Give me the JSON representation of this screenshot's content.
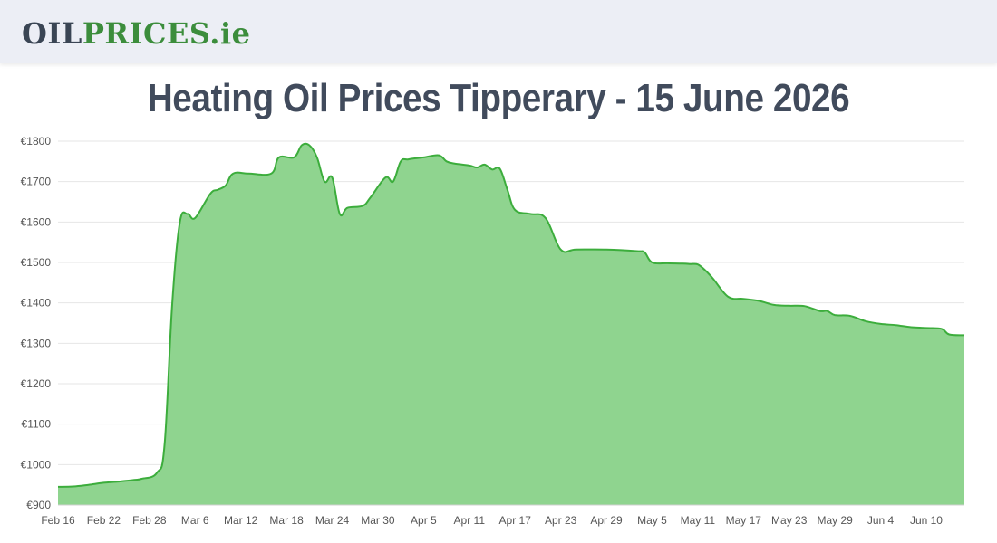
{
  "header": {
    "logo": {
      "part1": "OIL",
      "part2": "PRICES",
      "part3": ".ie"
    }
  },
  "page": {
    "title": "Heating Oil Prices Tipperary - 15 June 2026"
  },
  "colors": {
    "line": "#3cad3c",
    "fill": "#8fd48f",
    "grid": "#e6e6e6",
    "header_bg": "#eceef5"
  },
  "chart_data": {
    "type": "area",
    "title": "",
    "xlabel": "",
    "ylabel": "",
    "grid": true,
    "legend": "none",
    "ylim": [
      900,
      1800
    ],
    "yticks": [
      900,
      1000,
      1100,
      1200,
      1300,
      1400,
      1500,
      1600,
      1700,
      1800
    ],
    "ytick_labels": [
      "€900",
      "€1000",
      "€1100",
      "€1200",
      "€1300",
      "€1400",
      "€1500",
      "€1600",
      "€1700",
      "€1800"
    ],
    "x_start": "2026-02-16",
    "x_end": "2026-06-15",
    "xtick_labels": [
      "Feb 16",
      "Feb 22",
      "Feb 28",
      "Mar 6",
      "Mar 12",
      "Mar 18",
      "Mar 24",
      "Mar 30",
      "Apr 5",
      "Apr 11",
      "Apr 17",
      "Apr 23",
      "Apr 29",
      "May 5",
      "May 11",
      "May 17",
      "May 23",
      "May 29",
      "Jun 4",
      "Jun 10"
    ],
    "xtick_dates": [
      "2026-02-16",
      "2026-02-22",
      "2026-02-28",
      "2026-03-06",
      "2026-03-12",
      "2026-03-18",
      "2026-03-24",
      "2026-03-30",
      "2026-04-05",
      "2026-04-11",
      "2026-04-17",
      "2026-04-23",
      "2026-04-29",
      "2026-05-05",
      "2026-05-11",
      "2026-05-17",
      "2026-05-23",
      "2026-05-29",
      "2026-06-04",
      "2026-06-10"
    ],
    "series": [
      {
        "x": [
          "2026-02-16",
          "2026-02-18",
          "2026-02-20",
          "2026-02-22",
          "2026-02-24",
          "2026-02-26",
          "2026-02-27",
          "2026-03-01",
          "2026-03-02",
          "2026-03-03",
          "2026-03-04",
          "2026-03-05",
          "2026-03-06",
          "2026-03-08",
          "2026-03-09",
          "2026-03-10",
          "2026-03-11",
          "2026-03-13",
          "2026-03-16",
          "2026-03-17",
          "2026-03-19",
          "2026-03-20",
          "2026-03-21",
          "2026-03-22",
          "2026-03-23",
          "2026-03-24",
          "2026-03-25",
          "2026-03-26",
          "2026-03-28",
          "2026-03-29",
          "2026-03-31",
          "2026-04-01",
          "2026-04-02",
          "2026-04-03",
          "2026-04-05",
          "2026-04-07",
          "2026-04-08",
          "2026-04-09",
          "2026-04-11",
          "2026-04-12",
          "2026-04-13",
          "2026-04-14",
          "2026-04-15",
          "2026-04-16",
          "2026-04-17",
          "2026-04-19",
          "2026-04-21",
          "2026-04-23",
          "2026-04-25",
          "2026-04-29",
          "2026-05-03",
          "2026-05-04",
          "2026-05-05",
          "2026-05-07",
          "2026-05-09",
          "2026-05-10",
          "2026-05-11",
          "2026-05-12",
          "2026-05-13",
          "2026-05-15",
          "2026-05-17",
          "2026-05-19",
          "2026-05-21",
          "2026-05-23",
          "2026-05-25",
          "2026-05-27",
          "2026-05-28",
          "2026-05-29",
          "2026-05-31",
          "2026-06-02",
          "2026-06-04",
          "2026-06-06",
          "2026-06-08",
          "2026-06-10",
          "2026-06-12",
          "2026-06-13",
          "2026-06-15"
        ],
        "y": [
          945,
          946,
          950,
          955,
          958,
          962,
          965,
          980,
          1050,
          1400,
          1600,
          1620,
          1610,
          1670,
          1680,
          1690,
          1720,
          1720,
          1720,
          1760,
          1760,
          1790,
          1790,
          1760,
          1700,
          1710,
          1620,
          1635,
          1640,
          1660,
          1710,
          1700,
          1750,
          1755,
          1760,
          1765,
          1750,
          1745,
          1740,
          1735,
          1742,
          1730,
          1732,
          1680,
          1630,
          1620,
          1610,
          1532,
          1532,
          1532,
          1528,
          1525,
          1500,
          1498,
          1497,
          1496,
          1495,
          1480,
          1460,
          1415,
          1410,
          1405,
          1395,
          1393,
          1392,
          1380,
          1380,
          1370,
          1368,
          1355,
          1348,
          1345,
          1340,
          1338,
          1336,
          1322,
          1320
        ]
      }
    ]
  }
}
